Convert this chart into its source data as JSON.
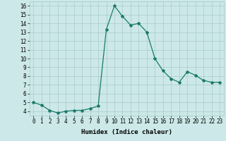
{
  "x": [
    0,
    1,
    2,
    3,
    4,
    5,
    6,
    7,
    8,
    9,
    10,
    11,
    12,
    13,
    14,
    15,
    16,
    17,
    18,
    19,
    20,
    21,
    22,
    23
  ],
  "y": [
    5.0,
    4.7,
    4.1,
    3.8,
    4.0,
    4.1,
    4.1,
    4.3,
    4.6,
    13.3,
    16.0,
    14.8,
    13.8,
    14.0,
    13.0,
    10.0,
    8.6,
    7.7,
    7.3,
    8.5,
    8.1,
    7.5,
    7.3,
    7.3
  ],
  "title": "",
  "xlabel": "Humidex (Indice chaleur)",
  "ylabel": "",
  "xlim": [
    -0.5,
    23.5
  ],
  "ylim": [
    3.5,
    16.5
  ],
  "yticks": [
    4,
    5,
    6,
    7,
    8,
    9,
    10,
    11,
    12,
    13,
    14,
    15,
    16
  ],
  "xticks": [
    0,
    1,
    2,
    3,
    4,
    5,
    6,
    7,
    8,
    9,
    10,
    11,
    12,
    13,
    14,
    15,
    16,
    17,
    18,
    19,
    20,
    21,
    22,
    23
  ],
  "line_color": "#1a7a6a",
  "marker": "*",
  "marker_size": 3,
  "bg_color": "#cce8e8",
  "grid_color": "#aacaca",
  "label_fontsize": 6.5,
  "tick_fontsize": 5.5
}
